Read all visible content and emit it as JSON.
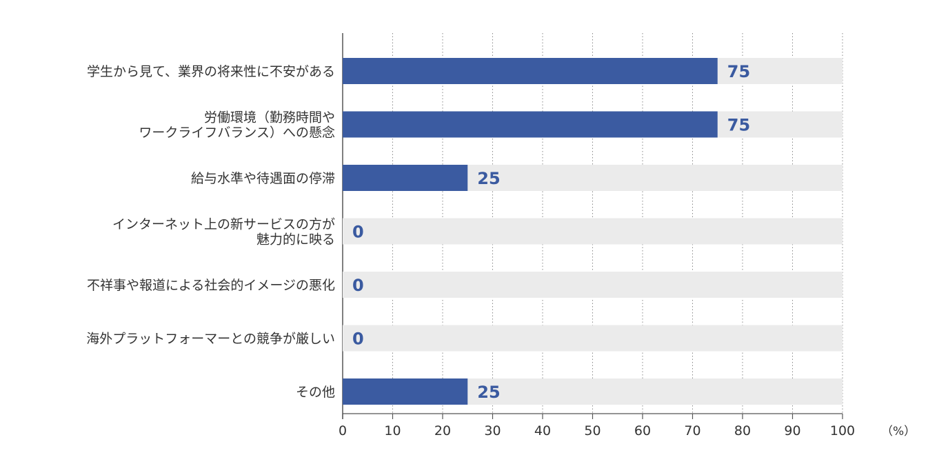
{
  "chart_data": {
    "type": "bar",
    "orientation": "horizontal",
    "categories": [
      [
        "学生から見て、業界の将来性に不安がある"
      ],
      [
        "労働環境（勤務時間や",
        "ワークライフバランス）への懸念"
      ],
      [
        "給与水準や待遇面の停滞"
      ],
      [
        "インターネット上の新サービスの方が",
        "魅力的に映る"
      ],
      [
        "不祥事や報道による社会的イメージの悪化"
      ],
      [
        "海外プラットフォーマーとの競争が厳しい"
      ],
      [
        "その他"
      ]
    ],
    "values": [
      75,
      75,
      25,
      0,
      0,
      0,
      25
    ],
    "xlim": [
      0,
      100
    ],
    "xticks": [
      "0",
      "10",
      "20",
      "30",
      "40",
      "50",
      "60",
      "70",
      "80",
      "90",
      "100"
    ],
    "unit": "（%）",
    "grid": true,
    "bar_color": "#3b5ba1",
    "track_color": "#ebebeb",
    "value_label_color": "#3a5aa0"
  }
}
